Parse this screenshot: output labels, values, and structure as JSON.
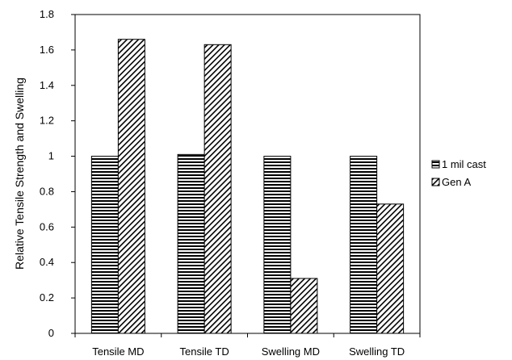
{
  "chart_data": {
    "type": "bar",
    "categories": [
      "Tensile MD",
      "Tensile TD",
      "Swelling MD",
      "Swelling TD"
    ],
    "series": [
      {
        "name": "1 mil cast",
        "values": [
          1.0,
          1.01,
          1.0,
          1.0
        ],
        "pattern": "horizontal-stripes"
      },
      {
        "name": "Gen A",
        "values": [
          1.66,
          1.63,
          0.31,
          0.73
        ],
        "pattern": "diagonal-hatch"
      }
    ],
    "title": "",
    "xlabel": "",
    "ylabel": "Relative Tensile Strength and Swelling",
    "ylim": [
      0,
      1.8
    ],
    "yticks": [
      "0",
      "0.2",
      "0.4",
      "0.6",
      "0.8",
      "1",
      "1.2",
      "1.4",
      "1.6",
      "1.8"
    ],
    "grid": false,
    "legend_position": "right"
  }
}
